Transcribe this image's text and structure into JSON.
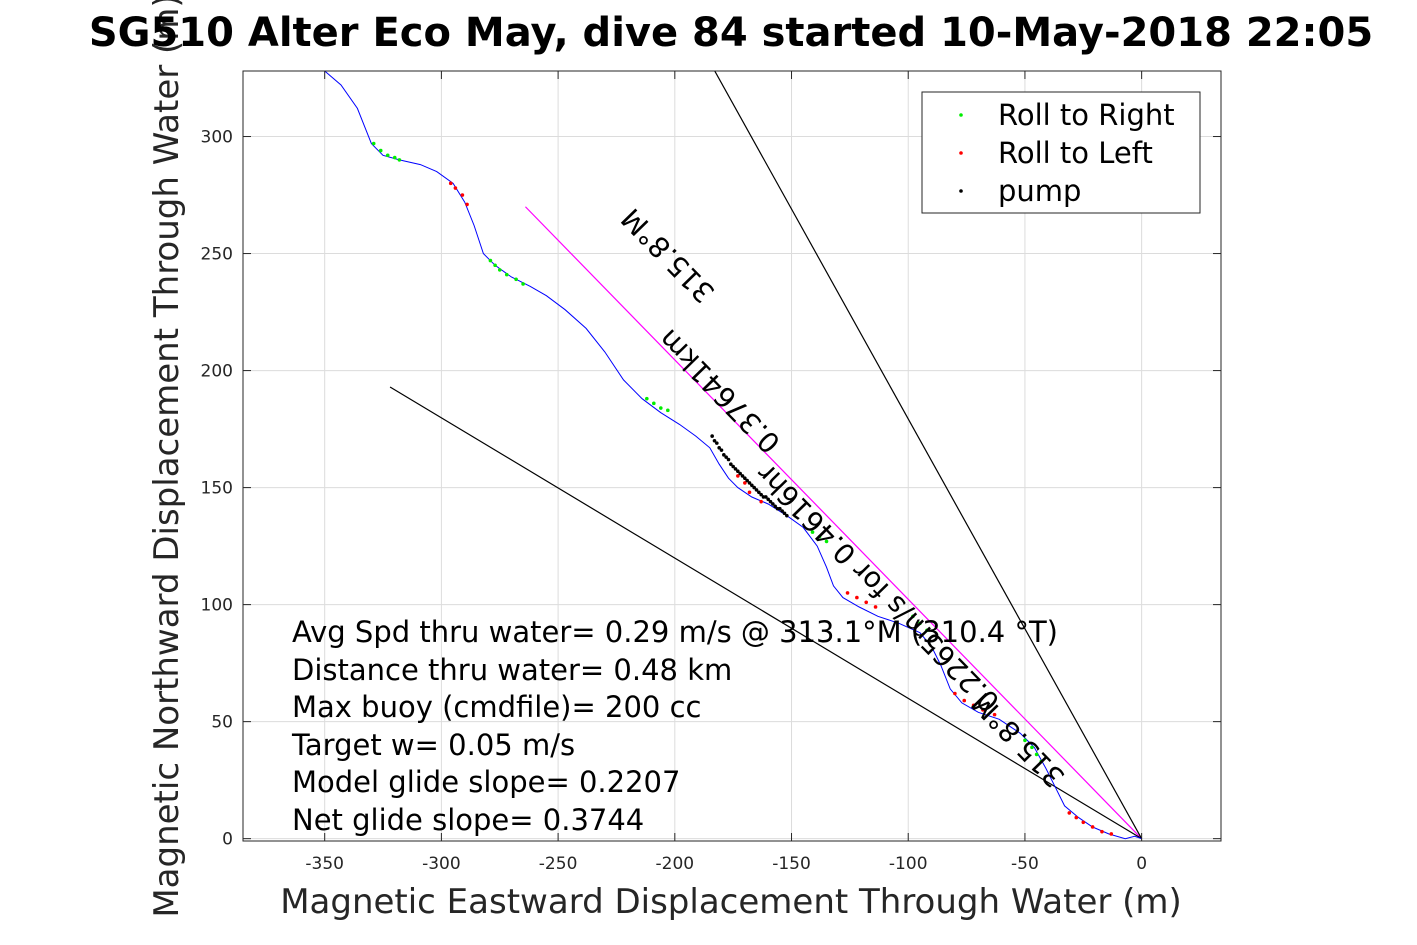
{
  "chart_data": {
    "type": "line",
    "title": "SG510 Alter Eco May, dive 84 started 10-May-2018 22:05",
    "xlabel": "Magnetic Eastward Displacement Through Water (m)",
    "ylabel": "Magnetic Northward Displacement Through Water (m)",
    "xlim": [
      -385,
      34
    ],
    "ylim": [
      -1,
      328
    ],
    "xticks": [
      -350,
      -300,
      -250,
      -200,
      -150,
      -100,
      -50,
      0
    ],
    "yticks": [
      0,
      50,
      100,
      150,
      200,
      250,
      300
    ],
    "xtick_labels": [
      "-350",
      "-300",
      "-250",
      "-200",
      "-150",
      "-100",
      "-50",
      "0"
    ],
    "ytick_labels": [
      "0",
      "50",
      "100",
      "150",
      "200",
      "250",
      "300"
    ],
    "grid": true,
    "legend_position": "top-right",
    "legend": [
      {
        "label": "Roll to Right",
        "color": "#00ee00"
      },
      {
        "label": "Roll to Left",
        "color": "#ff0000"
      },
      {
        "label": "pump",
        "color": "#000000"
      }
    ],
    "track": {
      "name": "track",
      "color": "#0000ff",
      "x": [
        -350,
        -343,
        -336,
        -330,
        -325,
        -318,
        -309,
        -302,
        -295,
        -290,
        -286,
        -282,
        -277,
        -270,
        -262,
        -255,
        -247,
        -238,
        -230,
        -222,
        -214,
        -206,
        -198,
        -191,
        -185,
        -181,
        -177,
        -173,
        -167,
        -160,
        -152,
        -145,
        -139,
        -135,
        -132,
        -128,
        -121,
        -113,
        -104,
        -95,
        -90,
        -86,
        -82,
        -77,
        -70,
        -61,
        -52,
        -46,
        -41,
        -37,
        -33,
        -27,
        -21,
        -14,
        -7,
        -3,
        0
      ],
      "y": [
        328,
        322,
        312,
        297,
        292,
        290,
        288,
        285,
        280,
        272,
        262,
        250,
        245,
        240,
        236,
        232,
        226,
        218,
        208,
        196,
        188,
        182,
        177,
        172,
        167,
        160,
        154,
        150,
        146,
        143,
        138,
        133,
        125,
        116,
        108,
        103,
        99,
        95,
        92,
        88,
        82,
        74,
        64,
        58,
        54,
        51,
        45,
        39,
        30,
        22,
        14,
        9,
        5,
        2,
        0,
        1,
        0
      ]
    },
    "roll_right": {
      "color": "#00ee00",
      "x": [
        -329,
        -326,
        -323,
        -320,
        -318,
        -279,
        -277,
        -275,
        -272,
        -268,
        -265,
        -212,
        -209,
        -206,
        -203,
        -141,
        -138,
        -135,
        -98,
        -95,
        -92,
        -50,
        -47,
        -45,
        -43
      ],
      "y": [
        297,
        294,
        292,
        291,
        290,
        247,
        245,
        243,
        241,
        239,
        237,
        188,
        186,
        184,
        183,
        131,
        129,
        127,
        95,
        92,
        89,
        42,
        39,
        36,
        33
      ]
    },
    "roll_left": {
      "color": "#ff0000",
      "x": [
        -296,
        -294,
        -291,
        -289,
        -173,
        -170,
        -168,
        -163,
        -126,
        -122,
        -118,
        -114,
        -80,
        -76,
        -72,
        -68,
        -63,
        -31,
        -28,
        -25,
        -21,
        -17,
        -13
      ],
      "y": [
        280,
        278,
        275,
        271,
        155,
        152,
        148,
        144,
        105,
        103,
        101,
        99,
        62,
        59,
        57,
        55,
        53,
        11,
        9,
        7,
        5,
        3,
        2
      ]
    },
    "pump": {
      "color": "#000000",
      "x": [
        -184,
        -183,
        -182,
        -181,
        -180,
        -179,
        -178,
        -177,
        -176,
        -175,
        -174,
        -173,
        -172,
        -171,
        -170,
        -169,
        -168,
        -167,
        -166,
        -165,
        -164,
        -163,
        -162,
        -161,
        -160,
        -159,
        -158,
        -157,
        -156,
        -155,
        -154,
        -153,
        -152
      ],
      "y": [
        172,
        170,
        169,
        167,
        166,
        164,
        163,
        162,
        160,
        159,
        158,
        157,
        156,
        155,
        154,
        153,
        152,
        151,
        150,
        149,
        148,
        147,
        146,
        146,
        145,
        144,
        143,
        142,
        141,
        141,
        140,
        139,
        138
      ]
    },
    "reference_lines": [
      {
        "name": "net-direction-line",
        "color": "#ff00ff",
        "x": [
          0,
          -264
        ],
        "y": [
          0,
          270
        ]
      },
      {
        "name": "envelope-line-steep",
        "color": "#000000",
        "x": [
          0,
          -184
        ],
        "y": [
          0,
          330
        ]
      },
      {
        "name": "envelope-line-shallow",
        "color": "#000000",
        "x": [
          0,
          -322
        ],
        "y": [
          0,
          193
        ]
      }
    ],
    "rotated_labels": [
      {
        "text": "315.8°M",
        "x": -200,
        "y": 252
      },
      {
        "text": "0.37641km",
        "x": -178,
        "y": 194
      },
      {
        "text": "0.2265m/s for 0.4616hr",
        "x": -110,
        "y": 110
      },
      {
        "text": "315.8°M",
        "x": -50,
        "y": 45
      }
    ],
    "annotations": [
      "Avg Spd thru water=  0.29 m/s @ 313.1°M (310.4 °T)",
      "Distance thru water=  0.48 km",
      "Max buoy (cmdfile)= 200 cc",
      "Target w= 0.05 m/s",
      "Model glide slope= 0.2207",
      "Net glide slope= 0.3744"
    ]
  }
}
